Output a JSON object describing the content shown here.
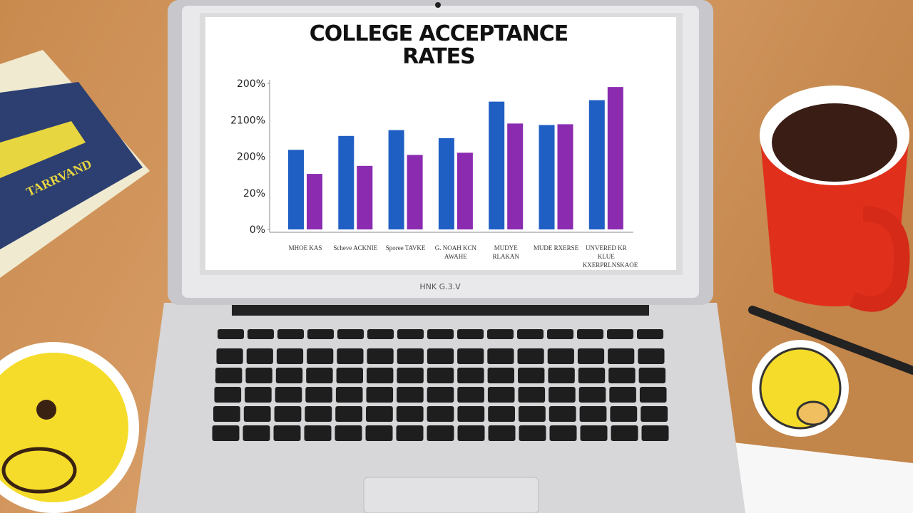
{
  "chart_data": {
    "type": "bar",
    "title": "COLLEGE ACCEPTANCE RATES",
    "categories": [
      "MHOE KAS",
      "Scheve ACKNIE",
      "Sporee TAVKE",
      "G. NOAH KCN AWAHE",
      "MUDYE RLAKAN",
      "MUDE RXERSE",
      "UNVERED KR KLUE KXERPRLNSKAOE"
    ],
    "series": [
      {
        "color": "#1f5fc4",
        "values": [
          109,
          128,
          136,
          125,
          175,
          143,
          177
        ]
      },
      {
        "color": "#8a2bb0",
        "values": [
          76,
          87,
          102,
          105,
          145,
          144,
          195
        ]
      }
    ],
    "ylim": [
      0,
      200
    ],
    "yticks": [
      {
        "value": 0,
        "label": "0%"
      },
      {
        "value": 200,
        "label": "200%"
      }
    ],
    "y_axis_texts": [
      "20%",
      "200%",
      "2100%"
    ]
  },
  "laptop": {
    "label": "HNK G.3.V"
  },
  "book": {
    "label": "TARRVAND"
  }
}
